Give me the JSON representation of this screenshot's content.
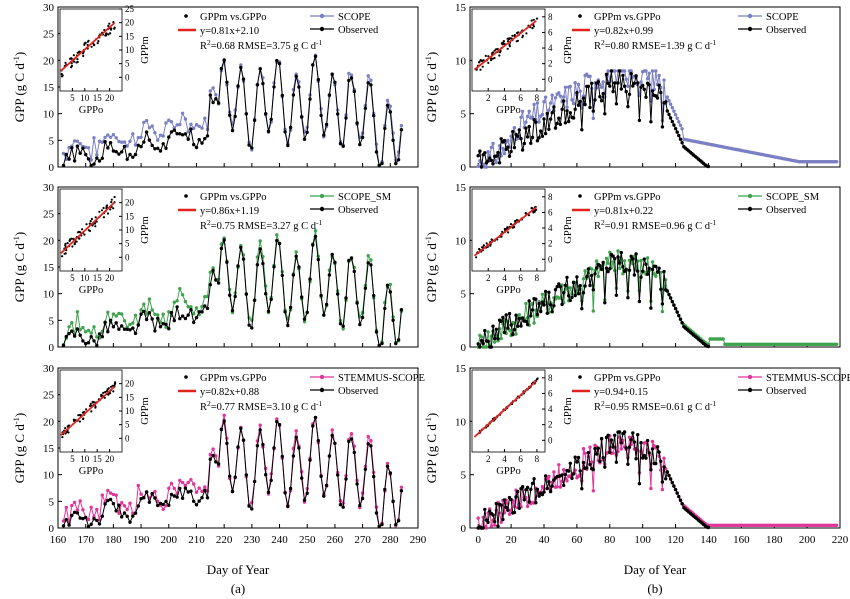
{
  "figure": {
    "panel_labels": [
      "(a)",
      "(b)"
    ],
    "x_label": "Day of  Year",
    "y_label_main": "GPP  (g C d",
    "y_label_sup": "-1",
    "y_label_end": ")"
  },
  "chart_data": [
    {
      "type": "line",
      "panel": "a",
      "row": 0,
      "xlim": [
        160,
        290
      ],
      "ylim": [
        0,
        30
      ],
      "xticks": [
        160,
        170,
        180,
        190,
        200,
        210,
        220,
        230,
        240,
        250,
        260,
        270,
        280,
        290
      ],
      "yticks": [
        0,
        5,
        10,
        15,
        20,
        25,
        30
      ],
      "series": [
        {
          "name": "SCOPE",
          "color": "#7b7fc4",
          "role": "model"
        },
        {
          "name": "Observed",
          "color": "#000000",
          "role": "obs"
        }
      ],
      "legend_scatter": "GPPm vs.GPPo",
      "fit_equation": "y=0.81x+2.10",
      "fit_stats": {
        "r2": "R",
        "r2_sup": "2",
        "text": "=0.68 RMSE=3.75 g C d",
        "unit_sup": "-1"
      },
      "inset": {
        "xlabel": "GPPo",
        "ylabel": "GPPm",
        "xlim": [
          0,
          25
        ],
        "ylim": [
          -5,
          25
        ],
        "xticks": [
          5,
          10,
          15,
          20
        ],
        "yticks": [
          0,
          5,
          10,
          15,
          20,
          25
        ],
        "slope": 0.81,
        "intercept": 2.1
      }
    },
    {
      "type": "line",
      "panel": "a",
      "row": 1,
      "xlim": [
        160,
        290
      ],
      "ylim": [
        0,
        30
      ],
      "xticks": [
        160,
        170,
        180,
        190,
        200,
        210,
        220,
        230,
        240,
        250,
        260,
        270,
        280,
        290
      ],
      "yticks": [
        0,
        5,
        10,
        15,
        20,
        25,
        30
      ],
      "series": [
        {
          "name": "SCOPE_SM",
          "color": "#3fa34d",
          "role": "model"
        },
        {
          "name": "Observed",
          "color": "#000000",
          "role": "obs"
        }
      ],
      "legend_scatter": "GPPm vs.GPPo",
      "fit_equation": "y=0.86x+1.19",
      "fit_stats": {
        "r2": "R",
        "r2_sup": "2",
        "text": "=0.75 RMSE=3.27 g C d",
        "unit_sup": "-1"
      },
      "inset": {
        "xlabel": "GPPo",
        "ylabel": "GPPm",
        "xlim": [
          0,
          25
        ],
        "ylim": [
          -5,
          25
        ],
        "xticks": [
          5,
          10,
          15,
          20
        ],
        "yticks": [
          0,
          5,
          10,
          15,
          20
        ],
        "slope": 0.86,
        "intercept": 1.19
      }
    },
    {
      "type": "line",
      "panel": "a",
      "row": 2,
      "xlim": [
        160,
        290
      ],
      "ylim": [
        0,
        30
      ],
      "xticks": [
        160,
        170,
        180,
        190,
        200,
        210,
        220,
        230,
        240,
        250,
        260,
        270,
        280,
        290
      ],
      "yticks": [
        0,
        5,
        10,
        15,
        20,
        25,
        30
      ],
      "series": [
        {
          "name": "STEMMUS-SCOPE",
          "color": "#e0359a",
          "role": "model"
        },
        {
          "name": "Observed",
          "color": "#000000",
          "role": "obs"
        }
      ],
      "legend_scatter": "GPPm vs.GPPo",
      "fit_equation": "y=0.82x+0.88",
      "fit_stats": {
        "r2": "R",
        "r2_sup": "2",
        "text": "=0.77 RMSE=3.10 g C d",
        "unit_sup": "-1"
      },
      "inset": {
        "xlabel": "GPPo",
        "ylabel": "GPPm",
        "xlim": [
          0,
          25
        ],
        "ylim": [
          -5,
          25
        ],
        "xticks": [
          5,
          10,
          15,
          20
        ],
        "yticks": [
          0,
          5,
          10,
          15,
          20
        ],
        "slope": 0.82,
        "intercept": 0.88
      }
    },
    {
      "type": "line",
      "panel": "b",
      "row": 0,
      "xlim": [
        -5,
        220
      ],
      "ylim": [
        0,
        15
      ],
      "xticks": [
        0,
        20,
        40,
        60,
        80,
        100,
        120,
        140,
        160,
        180,
        200,
        220
      ],
      "yticks": [
        0,
        5,
        10,
        15
      ],
      "series": [
        {
          "name": "SCOPE",
          "color": "#7b7fc4",
          "role": "model"
        },
        {
          "name": "Observed",
          "color": "#000000",
          "role": "obs"
        }
      ],
      "legend_scatter": "GPPm vs.GPPo",
      "fit_equation": "y=0.82x+0.99",
      "fit_stats": {
        "r2": "R",
        "r2_sup": "2",
        "text": "=0.80 RMSE=1.39 g C d",
        "unit_sup": "-1"
      },
      "inset": {
        "xlabel": "GPPo",
        "ylabel": "GPPm",
        "xlim": [
          0,
          9
        ],
        "ylim": [
          -1.5,
          9
        ],
        "xticks": [
          2,
          4,
          6,
          8
        ],
        "yticks": [
          0,
          2,
          4,
          6,
          8
        ],
        "slope": 0.82,
        "intercept": 0.99
      }
    },
    {
      "type": "line",
      "panel": "b",
      "row": 1,
      "xlim": [
        -5,
        220
      ],
      "ylim": [
        0,
        15
      ],
      "xticks": [
        0,
        20,
        40,
        60,
        80,
        100,
        120,
        140,
        160,
        180,
        200,
        220
      ],
      "yticks": [
        0,
        5,
        10,
        15
      ],
      "series": [
        {
          "name": "SCOPE_SM",
          "color": "#3fa34d",
          "role": "model"
        },
        {
          "name": "Observed",
          "color": "#000000",
          "role": "obs"
        }
      ],
      "legend_scatter": "GPPm vs.GPPo",
      "fit_equation": "y=0.81x+0.22",
      "fit_stats": {
        "r2": "R",
        "r2_sup": "2",
        "text": "=0.91 RMSE=0.96 g C d",
        "unit_sup": "-1"
      },
      "inset": {
        "xlabel": "GPPo",
        "ylabel": "GPPm",
        "xlim": [
          0,
          9
        ],
        "ylim": [
          -1.5,
          9
        ],
        "xticks": [
          2,
          4,
          6,
          8
        ],
        "yticks": [
          0,
          2,
          4,
          6,
          8
        ],
        "slope": 0.81,
        "intercept": 0.22
      }
    },
    {
      "type": "line",
      "panel": "b",
      "row": 2,
      "xlim": [
        -5,
        220
      ],
      "ylim": [
        0,
        15
      ],
      "xticks": [
        0,
        20,
        40,
        60,
        80,
        100,
        120,
        140,
        160,
        180,
        200,
        220
      ],
      "yticks": [
        0,
        5,
        10,
        15
      ],
      "series": [
        {
          "name": "STEMMUS-SCOPE",
          "color": "#e0359a",
          "role": "model"
        },
        {
          "name": "Observed",
          "color": "#000000",
          "role": "obs"
        }
      ],
      "legend_scatter": "GPPm vs.GPPo",
      "fit_equation": "y=0.94+0.15",
      "fit_stats": {
        "r2": "R",
        "r2_sup": "2",
        "text": "=0.95 RMSE=0.61 g C d",
        "unit_sup": "-1"
      },
      "inset": {
        "xlabel": "GPPo",
        "ylabel": "GPPm",
        "xlim": [
          0,
          9
        ],
        "ylim": [
          -1.5,
          9
        ],
        "xticks": [
          2,
          4,
          6,
          8
        ],
        "yticks": [
          0,
          2,
          4,
          6,
          8
        ],
        "slope": 0.94,
        "intercept": 0.15
      }
    }
  ],
  "fit_color": "#e0241b"
}
